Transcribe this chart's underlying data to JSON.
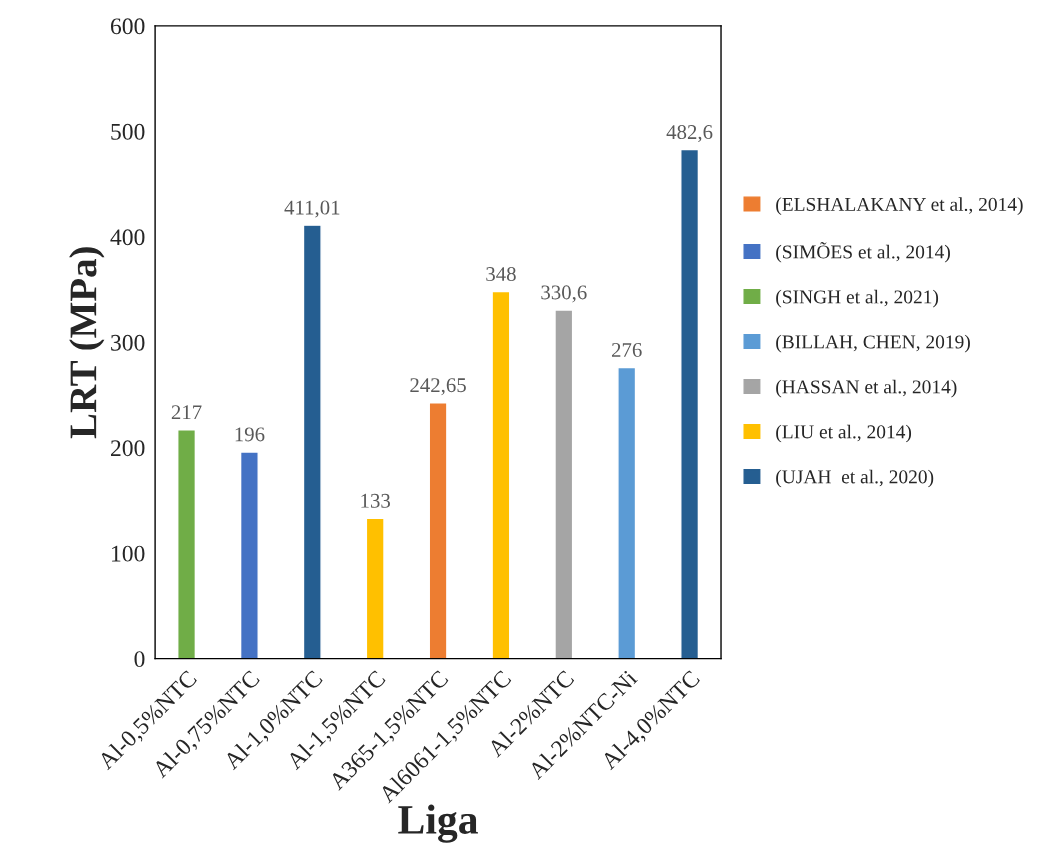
{
  "chart_data": {
    "type": "bar",
    "xlabel": "Liga",
    "ylabel": "LRT (MPa)",
    "categories": [
      "Al-0,5%NTC",
      "Al-0,75%NTC",
      "Al-1,0%NTC",
      "Al-1,5%NTC",
      "A365-1,5%NTC",
      "Al6061-1,5%NTC",
      "Al-2%NTC",
      "Al-2%NTC-Ni",
      "Al-4,0%NTC"
    ],
    "series": [
      {
        "name": "(ELSHALAKANY et al., 2014)",
        "color": "#ed7d31",
        "values": [
          null,
          null,
          null,
          null,
          242.65,
          null,
          null,
          null,
          null
        ],
        "value_labels": [
          null,
          null,
          null,
          null,
          "242,65",
          null,
          null,
          null,
          null
        ]
      },
      {
        "name": "(SIMÕES et al., 2014)",
        "color": "#4472c4",
        "values": [
          null,
          196,
          null,
          null,
          null,
          null,
          null,
          null,
          null
        ],
        "value_labels": [
          null,
          "196",
          null,
          null,
          null,
          null,
          null,
          null,
          null
        ]
      },
      {
        "name": "(SINGH et al., 2021)",
        "color": "#70ad47",
        "values": [
          217,
          null,
          null,
          null,
          null,
          null,
          null,
          null,
          null
        ],
        "value_labels": [
          "217",
          null,
          null,
          null,
          null,
          null,
          null,
          null,
          null
        ]
      },
      {
        "name": "(BILLAH, CHEN, 2019)",
        "color": "#5b9bd5",
        "values": [
          null,
          null,
          null,
          null,
          null,
          null,
          null,
          276,
          null
        ],
        "value_labels": [
          null,
          null,
          null,
          null,
          null,
          null,
          null,
          "276",
          null
        ]
      },
      {
        "name": "(HASSAN et al., 2014)",
        "color": "#a5a5a5",
        "values": [
          null,
          null,
          null,
          null,
          null,
          null,
          330.6,
          null,
          null
        ],
        "value_labels": [
          null,
          null,
          null,
          null,
          null,
          null,
          "330,6",
          null,
          null
        ]
      },
      {
        "name": "(LIU et al., 2014)",
        "color": "#ffc000",
        "values": [
          null,
          null,
          null,
          133,
          null,
          348,
          null,
          null,
          null
        ],
        "value_labels": [
          null,
          null,
          null,
          "133",
          null,
          "348",
          null,
          null,
          null
        ]
      },
      {
        "name": "(UJAH  et al., 2020)",
        "color": "#255e91",
        "values": [
          null,
          null,
          411.01,
          null,
          null,
          null,
          null,
          null,
          482.6
        ],
        "value_labels": [
          null,
          null,
          "411,01",
          null,
          null,
          null,
          null,
          null,
          "482,6"
        ]
      }
    ],
    "ylim": [
      0,
      600
    ],
    "yticks": [
      0,
      100,
      200,
      300,
      400,
      500,
      600
    ],
    "grid": false,
    "legend": "right"
  }
}
